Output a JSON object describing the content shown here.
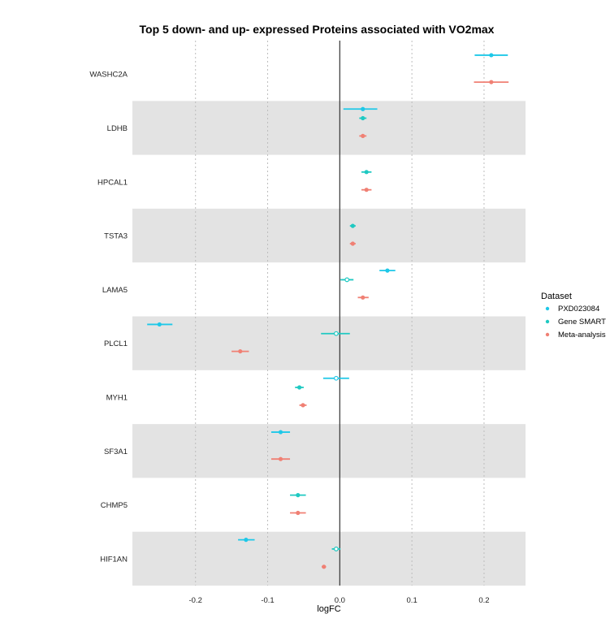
{
  "chart_data": {
    "type": "scatter",
    "title": "Top 5 down- and up- expressed Proteins associated with VO2max",
    "xlabel": "logFC",
    "ylabel": "",
    "xlim": [
      -0.2875,
      0.2575
    ],
    "x_ticks": [
      -0.2,
      -0.1,
      0.0,
      0.1,
      0.2
    ],
    "x_tick_labels": [
      "-0.2",
      "-0.1",
      "0.0",
      "0.1",
      "0.2"
    ],
    "categories": [
      "WASHC2A",
      "LDHB",
      "HPCAL1",
      "TSTA3",
      "LAMA5",
      "PLCL1",
      "MYH1",
      "SF3A1",
      "CHMP5",
      "HIF1AN"
    ],
    "grid": "vertical dotted",
    "legend": {
      "title": "Dataset",
      "position": "right",
      "entries": [
        "PXD023084",
        "Gene SMART",
        "Meta-analysis"
      ]
    },
    "colors": {
      "PXD023084": "#1EC8E8",
      "Gene SMART": "#1FC9C2",
      "Meta-analysis": "#F08074",
      "band": "#E3E3E3",
      "zero_line": "#333333",
      "grid": "#BDBDBD"
    },
    "series": [
      {
        "name": "PXD023084",
        "points": [
          {
            "protein": "WASHC2A",
            "x": 0.21,
            "lo": 0.187,
            "hi": 0.233
          },
          {
            "protein": "LDHB",
            "x": 0.032,
            "lo": 0.005,
            "hi": 0.052
          },
          {
            "protein": "LAMA5",
            "x": 0.066,
            "lo": 0.055,
            "hi": 0.077
          },
          {
            "protein": "PLCL1",
            "x": -0.25,
            "lo": -0.267,
            "hi": -0.232
          },
          {
            "protein": "SF3A1",
            "x": -0.082,
            "lo": -0.095,
            "hi": -0.069
          },
          {
            "protein": "HIF1AN",
            "x": -0.13,
            "lo": -0.141,
            "hi": -0.118
          }
        ]
      },
      {
        "name": "Gene SMART",
        "points": [
          {
            "protein": "LDHB",
            "x": 0.032,
            "lo": 0.027,
            "hi": 0.037
          },
          {
            "protein": "HPCAL1",
            "x": 0.037,
            "lo": 0.03,
            "hi": 0.044
          },
          {
            "protein": "TSTA3",
            "x": 0.018,
            "lo": 0.014,
            "hi": 0.022
          },
          {
            "protein": "LAMA5",
            "x": 0.01,
            "lo": 0.001,
            "hi": 0.019
          },
          {
            "protein": "PLCL1",
            "x": -0.005,
            "lo": -0.026,
            "hi": 0.014
          },
          {
            "protein": "MYH1",
            "x": -0.056,
            "lo": -0.062,
            "hi": -0.05
          },
          {
            "protein": "CHMP5",
            "x": -0.058,
            "lo": -0.069,
            "hi": -0.047
          },
          {
            "protein": "HIF1AN",
            "x": -0.005,
            "lo": -0.011,
            "hi": 0.001
          }
        ]
      },
      {
        "name": "Meta-analysis",
        "points": [
          {
            "protein": "WASHC2A",
            "x": 0.21,
            "lo": 0.186,
            "hi": 0.234
          },
          {
            "protein": "LDHB",
            "x": 0.032,
            "lo": 0.027,
            "hi": 0.037
          },
          {
            "protein": "HPCAL1",
            "x": 0.037,
            "lo": 0.03,
            "hi": 0.044
          },
          {
            "protein": "TSTA3",
            "x": 0.018,
            "lo": 0.014,
            "hi": 0.022
          },
          {
            "protein": "LAMA5",
            "x": 0.032,
            "lo": 0.025,
            "hi": 0.04
          },
          {
            "protein": "PLCL1",
            "x": -0.138,
            "lo": -0.15,
            "hi": -0.126
          },
          {
            "protein": "MYH1",
            "x": -0.051,
            "lo": -0.056,
            "hi": -0.046
          },
          {
            "protein": "SF3A1",
            "x": -0.082,
            "lo": -0.095,
            "hi": -0.069
          },
          {
            "protein": "CHMP5",
            "x": -0.058,
            "lo": -0.069,
            "hi": -0.047
          },
          {
            "protein": "HIF1AN",
            "x": -0.022,
            "lo": -0.025,
            "hi": -0.019
          }
        ]
      },
      {
        "name": "PXD023084 (hollow)",
        "hollow": true,
        "points": [
          {
            "protein": "MYH1",
            "x": -0.005,
            "lo": -0.023,
            "hi": 0.013
          }
        ]
      }
    ]
  }
}
